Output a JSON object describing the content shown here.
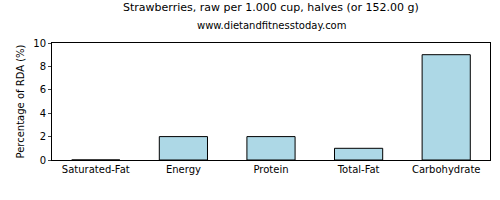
{
  "chart_data": {
    "type": "bar",
    "title": "Strawberries, raw per 1.000 cup, halves (or 152.00 g)",
    "subtitle": "www.dietandfitnesstoday.com",
    "y_label": "Percentage of RDA (%)",
    "categories": [
      "Saturated-Fat",
      "Energy",
      "Protein",
      "Total-Fat",
      "Carbohydrate"
    ],
    "values": [
      0,
      2,
      2,
      1,
      9
    ],
    "color": "#add8e6",
    "ylim": [
      0,
      10
    ],
    "yticks": [
      0,
      2,
      4,
      6,
      8,
      10
    ],
    "grid": false
  }
}
